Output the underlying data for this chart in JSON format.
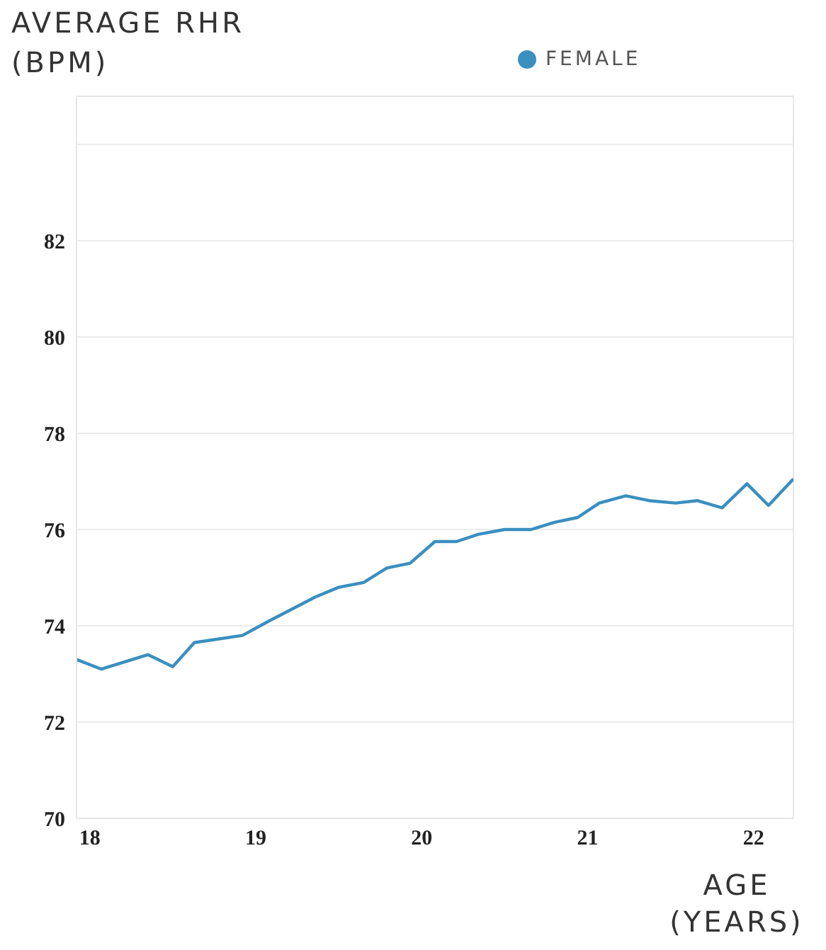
{
  "chart_data": {
    "type": "line",
    "ylabel": "AVERAGE RHR (BPM)",
    "xlabel": "AGE (YEARS)",
    "x": [
      17.92,
      18.07,
      18.35,
      18.5,
      18.63,
      18.92,
      19.08,
      19.22,
      19.36,
      19.5,
      19.65,
      19.79,
      19.93,
      20.08,
      20.21,
      20.34,
      20.5,
      20.66,
      20.8,
      20.94,
      21.07,
      21.23,
      21.37,
      21.53,
      21.66,
      21.81,
      21.96,
      22.09,
      22.24
    ],
    "series": [
      {
        "name": "FEMALE",
        "color": "#3a8fbf",
        "values": [
          73.3,
          73.1,
          73.4,
          73.15,
          73.65,
          73.8,
          74.1,
          74.35,
          74.6,
          74.8,
          74.9,
          75.2,
          75.3,
          75.75,
          75.75,
          75.9,
          76.0,
          76.0,
          76.15,
          76.25,
          76.55,
          76.7,
          76.6,
          76.55,
          76.6,
          76.45,
          76.95,
          76.5,
          77.05
        ]
      }
    ],
    "xlim": [
      17.92,
      22.24
    ],
    "xticks": [
      18,
      19,
      20,
      21,
      22
    ],
    "ylim": [
      70,
      85
    ],
    "yticks": [
      70,
      72,
      74,
      76,
      78,
      80,
      82,
      {
        "value": 84,
        "label": null
      }
    ],
    "grid": "y",
    "legend": "top",
    "marker": "none",
    "line_style": "solid"
  }
}
